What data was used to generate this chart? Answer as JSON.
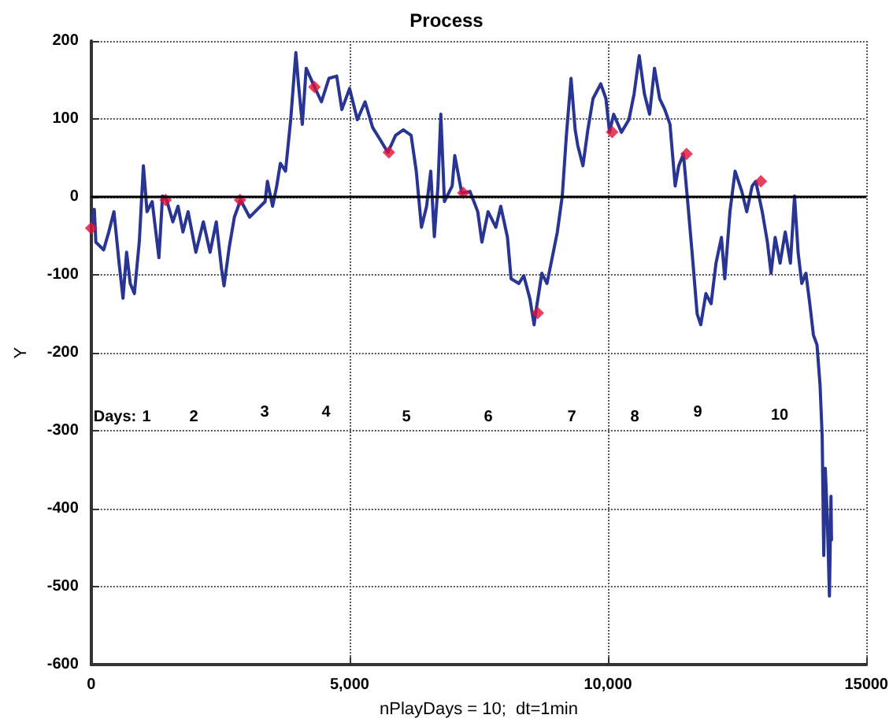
{
  "chart_data": {
    "type": "line",
    "title": "Process",
    "xlabel": "nPlayDays = 10;  dt=1min",
    "ylabel": "Y",
    "xlim": [
      0,
      15000
    ],
    "xticks": [
      0,
      {
        "value": 5000,
        "label": "5,000"
      },
      {
        "value": 10000,
        "label": "10,000"
      },
      15000
    ],
    "ylim": [
      -600,
      200
    ],
    "yticks": [
      -600,
      -500,
      -400,
      -300,
      -200,
      -100,
      0,
      100,
      200
    ],
    "grid": true,
    "series": [
      {
        "color": "#283593",
        "marker": "none",
        "line_style": "solid",
        "x": [
          0,
          60,
          90,
          240,
          340,
          440,
          540,
          615,
          685,
          755,
          835,
          930,
          1010,
          1080,
          1180,
          1310,
          1380,
          1460,
          1580,
          1680,
          1775,
          1875,
          2025,
          2170,
          2300,
          2420,
          2520,
          2570,
          2670,
          2770,
          2890,
          3065,
          3215,
          3365,
          3410,
          3510,
          3590,
          3660,
          3760,
          3860,
          3960,
          4010,
          4085,
          4160,
          4320,
          4455,
          4600,
          4750,
          4850,
          5000,
          5150,
          5300,
          5445,
          5595,
          5740,
          5890,
          6040,
          6190,
          6290,
          6390,
          6490,
          6570,
          6640,
          6710,
          6765,
          6835,
          6985,
          7035,
          7170,
          7330,
          7480,
          7560,
          7680,
          7830,
          7925,
          8055,
          8125,
          8275,
          8370,
          8490,
          8570,
          8600,
          8720,
          8820,
          8920,
          9020,
          9115,
          9195,
          9285,
          9365,
          9415,
          9515,
          9610,
          9710,
          9860,
          9960,
          10030,
          10110,
          10260,
          10405,
          10505,
          10605,
          10705,
          10805,
          10900,
          11000,
          11100,
          11200,
          11300,
          11370,
          11460,
          11550,
          11645,
          11725,
          11795,
          11895,
          11995,
          12090,
          12195,
          12260,
          12360,
          12460,
          12590,
          12685,
          12790,
          12860,
          12985,
          13085,
          13155,
          13235,
          13330,
          13430,
          13530,
          13610,
          13680,
          13750,
          13830,
          13905,
          13975,
          14045,
          14105,
          14145,
          14175,
          14205,
          14245,
          14285,
          14315,
          14325
        ],
        "values": [
          -40,
          -16,
          -58,
          -68,
          -45,
          -19,
          -85,
          -130,
          -71,
          -111,
          -124,
          -58,
          40,
          -19,
          -6,
          -78,
          1,
          -4,
          -32,
          -12,
          -45,
          -19,
          -71,
          -32,
          -71,
          -32,
          -91,
          -114,
          -65,
          -26,
          -4,
          -26,
          -16,
          -6,
          20,
          -12,
          14,
          43,
          33,
          99,
          185,
          145,
          93,
          165,
          141,
          122,
          152,
          155,
          112,
          139,
          99,
          122,
          89,
          73,
          57,
          79,
          86,
          79,
          33,
          -39,
          -12,
          33,
          -51,
          14,
          106,
          -6,
          14,
          53,
          5,
          7,
          -19,
          -58,
          -19,
          -39,
          -12,
          -52,
          -105,
          -111,
          -101,
          -131,
          -164,
          -149,
          -98,
          -111,
          -78,
          -45,
          1,
          79,
          152,
          86,
          66,
          40,
          86,
          126,
          145,
          126,
          83,
          106,
          83,
          99,
          132,
          181,
          132,
          106,
          165,
          126,
          112,
          93,
          14,
          40,
          55,
          -12,
          -85,
          -150,
          -164,
          -124,
          -137,
          -85,
          -52,
          -105,
          -19,
          33,
          7,
          -19,
          14,
          20,
          -19,
          -58,
          -98,
          -52,
          -85,
          -45,
          -85,
          1,
          -72,
          -111,
          -98,
          -137,
          -177,
          -190,
          -243,
          -308,
          -460,
          -348,
          -414,
          -512,
          -384,
          -440
        ]
      },
      {
        "type": "scatter",
        "color": "#e0103a",
        "marker": "diamond",
        "x": [
          0,
          1440,
          2880,
          4320,
          5760,
          7200,
          8640,
          10080,
          11520,
          12960
        ],
        "values": [
          -40,
          -4,
          -4,
          141,
          57,
          5,
          -149,
          83,
          55,
          20
        ]
      }
    ],
    "ref_lines": [
      {
        "axis": "y",
        "value": 0,
        "color": "#000000",
        "line_style": "solid"
      }
    ],
    "annotations": [
      "Days:",
      "1",
      "2",
      "3",
      "4",
      "5",
      "6",
      "7",
      "8",
      "9",
      "10"
    ]
  }
}
